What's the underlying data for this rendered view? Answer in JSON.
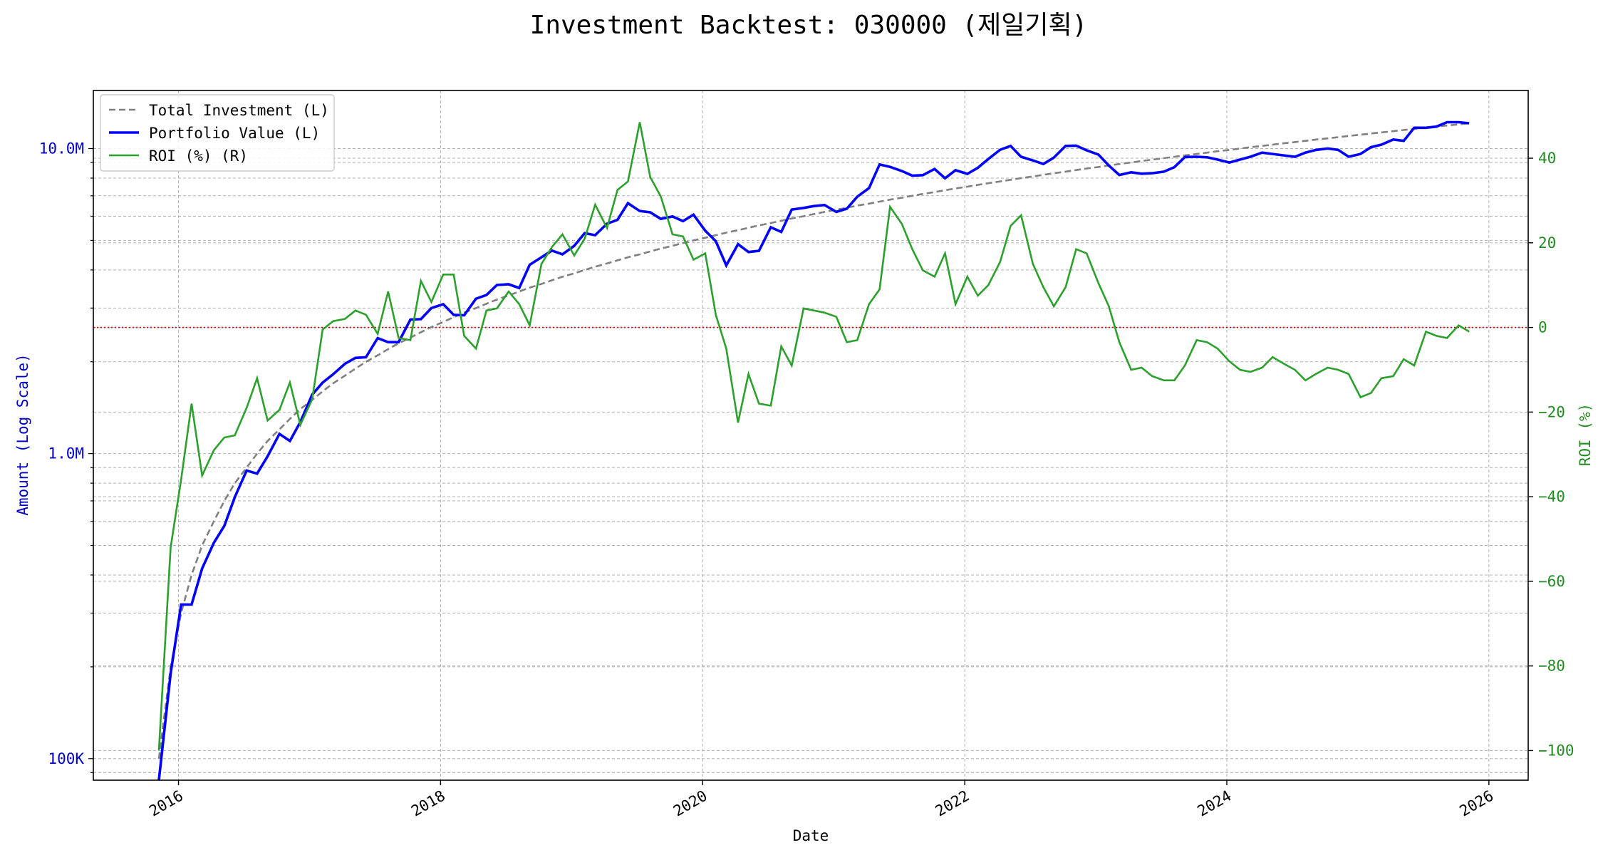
{
  "chart_data": {
    "type": "line",
    "title": "Investment Backtest: 030000 (제일기획)",
    "xlabel": "Date",
    "ylabel_left": "Amount (Log Scale)",
    "ylabel_right": "ROI (%)",
    "left_scale": "log",
    "xlim": [
      2015.35,
      2026.3
    ],
    "ylim_left": [
      85000,
      15500000
    ],
    "ylim_right": [
      -107,
      56
    ],
    "x_ticks": [
      2016,
      2018,
      2020,
      2022,
      2024,
      2026
    ],
    "x_tick_labels": [
      "2016",
      "2018",
      "2020",
      "2022",
      "2024",
      "2026"
    ],
    "left_ticks": [
      100000,
      1000000,
      10000000
    ],
    "left_tick_labels": [
      "100K",
      "1.0M",
      "10.0M"
    ],
    "right_ticks": [
      -100,
      -80,
      -60,
      -40,
      -20,
      0,
      20,
      40
    ],
    "right_tick_labels": [
      "−100",
      "−80",
      "−60",
      "−40",
      "−20",
      "0",
      "20",
      "40"
    ],
    "grid": true,
    "legend_placement": "top-left",
    "reference_line": {
      "axis": "right",
      "value": 0,
      "style": "dotted",
      "color": "#cc0000"
    },
    "colors": {
      "total": "#808080",
      "portfolio": "#0000ff",
      "roi": "#2ca02c",
      "left_axis": "#0000cc",
      "right_axis": "#228b22"
    },
    "x": [
      2015.85,
      2015.94,
      2016.02,
      2016.1,
      2016.18,
      2016.27,
      2016.35,
      2016.43,
      2016.52,
      2016.6,
      2016.68,
      2016.77,
      2016.85,
      2016.93,
      2017.02,
      2017.1,
      2017.18,
      2017.27,
      2017.35,
      2017.43,
      2017.52,
      2017.6,
      2017.68,
      2017.77,
      2017.85,
      2017.93,
      2018.02,
      2018.1,
      2018.18,
      2018.27,
      2018.35,
      2018.43,
      2018.52,
      2018.6,
      2018.68,
      2018.77,
      2018.85,
      2018.93,
      2019.02,
      2019.1,
      2019.18,
      2019.27,
      2019.35,
      2019.43,
      2019.52,
      2019.6,
      2019.68,
      2019.77,
      2019.85,
      2019.93,
      2020.02,
      2020.1,
      2020.18,
      2020.27,
      2020.35,
      2020.43,
      2020.52,
      2020.6,
      2020.68,
      2020.77,
      2020.85,
      2020.93,
      2021.02,
      2021.1,
      2021.18,
      2021.27,
      2021.35,
      2021.43,
      2021.52,
      2021.6,
      2021.68,
      2021.77,
      2021.85,
      2021.93,
      2022.02,
      2022.1,
      2022.18,
      2022.27,
      2022.35,
      2022.43,
      2022.52,
      2022.6,
      2022.68,
      2022.77,
      2022.85,
      2022.93,
      2023.02,
      2023.1,
      2023.18,
      2023.27,
      2023.35,
      2023.43,
      2023.52,
      2023.6,
      2023.68,
      2023.77,
      2023.85,
      2023.93,
      2024.02,
      2024.1,
      2024.18,
      2024.27,
      2024.35,
      2024.43,
      2024.52,
      2024.6,
      2024.68,
      2024.77,
      2024.85,
      2024.93,
      2025.02,
      2025.1,
      2025.18,
      2025.27,
      2025.35,
      2025.43,
      2025.52,
      2025.6,
      2025.68,
      2025.77,
      2025.85
    ],
    "series": [
      {
        "name": "Total Investment (L)",
        "axis": "left",
        "values": [
          100000,
          200000,
          300000,
          400000,
          500000,
          600000,
          700000,
          800000,
          900000,
          1000000,
          1100000,
          1200000,
          1300000,
          1400000,
          1500000,
          1600000,
          1700000,
          1800000,
          1900000,
          2000000,
          2100000,
          2200000,
          2300000,
          2400000,
          2500000,
          2600000,
          2700000,
          2800000,
          2900000,
          3000000,
          3100000,
          3200000,
          3300000,
          3400000,
          3500000,
          3600000,
          3700000,
          3800000,
          3900000,
          4000000,
          4100000,
          4200000,
          4300000,
          4400000,
          4500000,
          4600000,
          4700000,
          4800000,
          4900000,
          5000000,
          5100000,
          5200000,
          5300000,
          5400000,
          5500000,
          5600000,
          5700000,
          5800000,
          5900000,
          6000000,
          6100000,
          6200000,
          6300000,
          6400000,
          6500000,
          6600000,
          6700000,
          6800000,
          6900000,
          7000000,
          7100000,
          7200000,
          7300000,
          7400000,
          7500000,
          7600000,
          7700000,
          7800000,
          7900000,
          8000000,
          8100000,
          8200000,
          8300000,
          8400000,
          8500000,
          8600000,
          8700000,
          8800000,
          8900000,
          9000000,
          9100000,
          9200000,
          9300000,
          9400000,
          9500000,
          9600000,
          9700000,
          9800000,
          9900000,
          10000000,
          10100000,
          10200000,
          10300000,
          10400000,
          10500000,
          10600000,
          10700000,
          10800000,
          10900000,
          11000000,
          11100000,
          11200000,
          11300000,
          11400000,
          11500000,
          11600000,
          11700000,
          11800000,
          11900000,
          12000000,
          12100000
        ]
      },
      {
        "name": "Portfolio Value (L)",
        "axis": "left",
        "values": [
          60000,
          190000,
          320000,
          320000,
          420000,
          510000,
          580000,
          720000,
          880000,
          860000,
          980000,
          1160000,
          1100000,
          1270000,
          1560000,
          1710000,
          1820000,
          1970000,
          2060000,
          2070000,
          2390000,
          2320000,
          2320000,
          2750000,
          2760000,
          3000000,
          3090000,
          2850000,
          2840000,
          3220000,
          3310000,
          3570000,
          3590000,
          3490000,
          4160000,
          4400000,
          4630000,
          4500000,
          4800000,
          5280000,
          5200000,
          5670000,
          5840000,
          6620000,
          6240000,
          6180000,
          5880000,
          5990000,
          5780000,
          6070000,
          5380000,
          4970000,
          4140000,
          4860000,
          4580000,
          4620000,
          5520000,
          5330000,
          6310000,
          6390000,
          6480000,
          6530000,
          6200000,
          6350000,
          6950000,
          7420000,
          8870000,
          8710000,
          8440000,
          8150000,
          8180000,
          8570000,
          7990000,
          8490000,
          8260000,
          8650000,
          9240000,
          9910000,
          10200000,
          9400000,
          9140000,
          8900000,
          9340000,
          10200000,
          10220000,
          9870000,
          9560000,
          8800000,
          8190000,
          8360000,
          8270000,
          8300000,
          8400000,
          8690000,
          9380000,
          9400000,
          9360000,
          9200000,
          9000000,
          9200000,
          9400000,
          9700000,
          9600000,
          9500000,
          9400000,
          9700000,
          9900000,
          10000000,
          9900000,
          9400000,
          9600000,
          10100000,
          10300000,
          10700000,
          10600000,
          11700000,
          11700000,
          11800000,
          12200000,
          12200000,
          12100000
        ]
      },
      {
        "name": "ROI (%) (R)",
        "axis": "right",
        "values": [
          -100,
          -52,
          -36,
          -18,
          -35,
          -29,
          -26,
          -25.5,
          -19,
          -12,
          -22,
          -19.5,
          -13,
          -23,
          -17,
          -0.5,
          1.5,
          2,
          4,
          3,
          -1.5,
          8.5,
          -2.5,
          -3,
          11,
          6,
          12.5,
          12.5,
          -2,
          -5,
          4,
          4.5,
          8.5,
          5.5,
          0.5,
          15,
          19,
          22,
          17,
          21,
          29,
          23.5,
          32.5,
          34.5,
          48.5,
          35.5,
          31,
          22,
          21.5,
          16,
          17.5,
          3,
          -5,
          -22.5,
          -11,
          -18,
          -18.5,
          -4.5,
          -9,
          4.5,
          4,
          3.5,
          2.5,
          -3.5,
          -3,
          5.5,
          9,
          28.5,
          24.5,
          18.5,
          13.5,
          12,
          17.5,
          5.5,
          12,
          7.5,
          10,
          15.5,
          24,
          26.5,
          15,
          9.5,
          5,
          9.5,
          18.5,
          17.5,
          10.5,
          5,
          -3.5,
          -10,
          -9.5,
          -11.5,
          -12.5,
          -12.5,
          -9,
          -3,
          -3.5,
          -5,
          -8,
          -10,
          -10.5,
          -9.5,
          -7,
          -8.5,
          -10,
          -12.5,
          -11,
          -9.5,
          -10,
          -11,
          -16.5,
          -15.5,
          -12,
          -11.5,
          -7.5,
          -9,
          -1,
          -2,
          -2.5,
          0.5,
          -1
        ]
      }
    ]
  }
}
